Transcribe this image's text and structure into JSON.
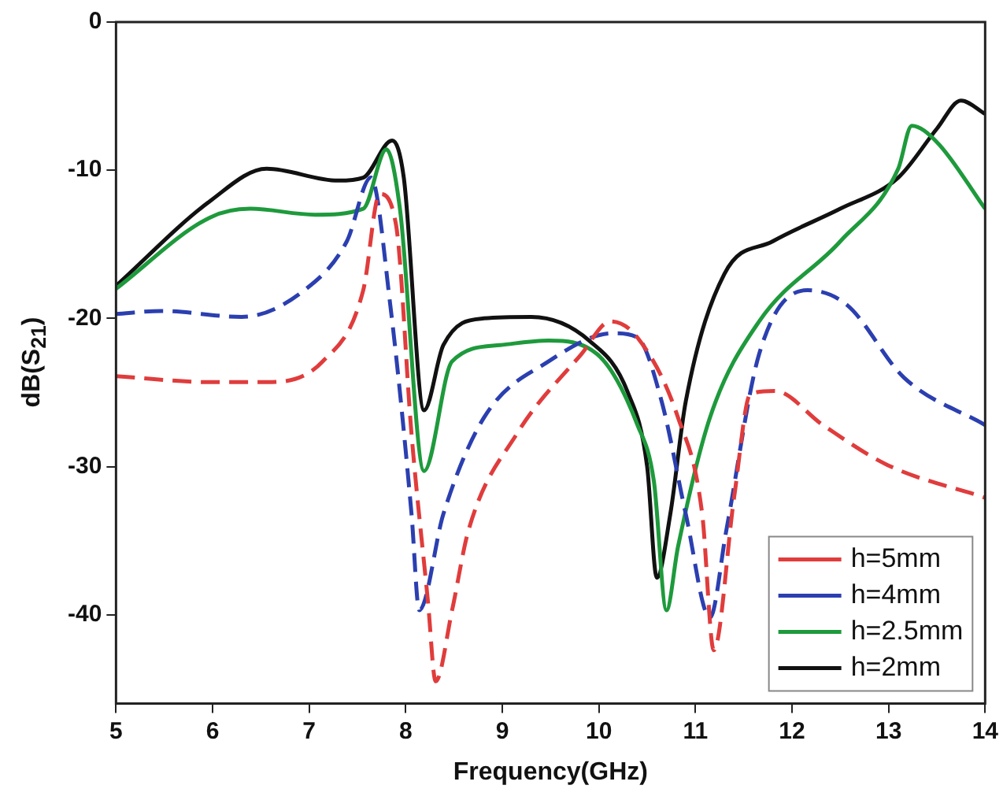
{
  "chart_data": {
    "type": "line",
    "xlabel": "Frequency(GHz)",
    "ylabel": "dB(S$_{21}$)",
    "xlim": [
      5,
      14
    ],
    "xticks": [
      5,
      6,
      7,
      8,
      9,
      10,
      11,
      12,
      13,
      14
    ],
    "ylim": [
      -46,
      0
    ],
    "yticks": [
      0,
      -10,
      -20,
      -30,
      -40
    ],
    "grid": false,
    "legend": "bottom right",
    "marker": "none",
    "series": [
      {
        "name": "h=5mm",
        "color": "#e03c3c",
        "line_style": "dashed",
        "x": [
          5,
          5.97,
          6.56,
          7.14,
          7.56,
          7.73,
          7.9,
          8.06,
          8.23,
          8.31,
          8.48,
          8.65,
          9.15,
          9.82,
          10.12,
          10.4,
          10.82,
          11.07,
          11.19,
          11.4,
          11.57,
          11.82,
          12.32,
          12.99,
          14
        ],
        "values": [
          -23.9,
          -24.3,
          -24.3,
          -22.9,
          -18.1,
          -11.6,
          -13.7,
          -27.8,
          -39.1,
          -44.5,
          -39.7,
          -34.3,
          -27.8,
          -22.4,
          -20.2,
          -21.3,
          -26.7,
          -33.2,
          -42.4,
          -32.1,
          -25.1,
          -24.9,
          -27.2,
          -29.9,
          -32.1
        ]
      },
      {
        "name": "h=4mm",
        "color": "#2b3fb0",
        "line_style": "dashed",
        "x": [
          5,
          5.47,
          6.3,
          6.97,
          7.39,
          7.64,
          7.84,
          8.06,
          8.14,
          8.39,
          8.81,
          9.48,
          10.15,
          10.4,
          10.65,
          10.9,
          11.15,
          11.32,
          11.66,
          12.16,
          12.57,
          13.16,
          14
        ],
        "values": [
          -19.7,
          -19.5,
          -19.9,
          -18,
          -14.8,
          -10.5,
          -19.1,
          -33.2,
          -39.7,
          -33.2,
          -26.7,
          -22.9,
          -21,
          -21.3,
          -25.6,
          -33.2,
          -40.2,
          -34.3,
          -22.4,
          -18.1,
          -19.1,
          -24,
          -27.2
        ]
      },
      {
        "name": "h=2.5mm",
        "color": "#1e9a3c",
        "line_style": "solid",
        "x": [
          5,
          5.97,
          6.39,
          7.06,
          7.56,
          7.8,
          7.94,
          8.19,
          8.48,
          8.98,
          9.48,
          9.98,
          10.4,
          10.57,
          10.7,
          10.82,
          11.15,
          11.66,
          12.5,
          13.1,
          13.24,
          13.5,
          14
        ],
        "values": [
          -18,
          -13.2,
          -12.6,
          -13,
          -12.6,
          -8.6,
          -12.6,
          -30.3,
          -22.9,
          -21.8,
          -21.5,
          -22.4,
          -27.2,
          -31,
          -39.7,
          -35.4,
          -26.7,
          -20.2,
          -14.8,
          -9.9,
          -7,
          -8.1,
          -12.6
        ]
      },
      {
        "name": "h=2mm",
        "color": "#111111",
        "line_style": "solid",
        "x": [
          5,
          5.97,
          6.56,
          7.3,
          7.56,
          7.86,
          7.98,
          8.19,
          8.39,
          8.81,
          9.3,
          9.9,
          10.3,
          10.5,
          10.6,
          10.74,
          10.9,
          11.3,
          11.8,
          12.5,
          13.1,
          13.5,
          13.75,
          14
        ],
        "values": [
          -17.8,
          -12.1,
          -9.9,
          -10.7,
          -10.5,
          -8,
          -10.5,
          -26.2,
          -21.8,
          -20,
          -19.9,
          -21.5,
          -25,
          -30,
          -37.5,
          -33.2,
          -25.6,
          -17,
          -14.8,
          -12.6,
          -10.5,
          -7.2,
          -5.3,
          -6.2
        ]
      }
    ]
  }
}
